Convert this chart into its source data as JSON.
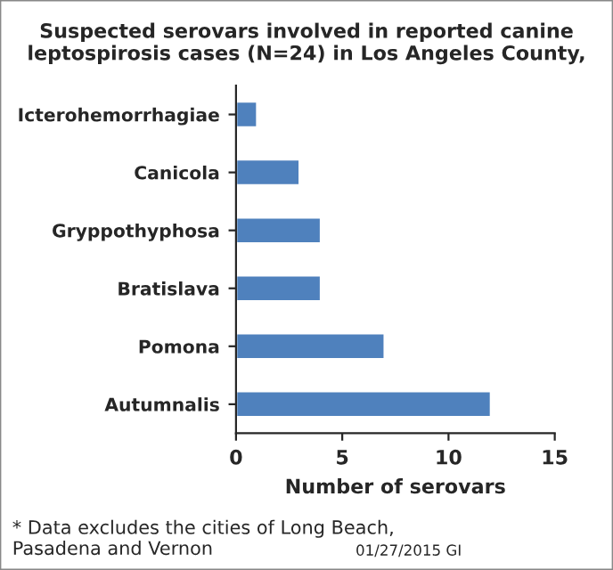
{
  "chart_data": {
    "type": "bar",
    "orientation": "horizontal",
    "title": "Suspected serovars involved in reported canine\nleptospirosis cases (N=24) in Los Angeles County,",
    "xlabel": "Number of serovars",
    "categories": [
      "Icterohemorrhagiae",
      "Canicola",
      "Gryppothyphosa",
      "Bratislava",
      "Pomona",
      "Autumnalis"
    ],
    "values": [
      1,
      3,
      4,
      4,
      7,
      12
    ],
    "color": "#4f81bd",
    "xlim": [
      0,
      15
    ],
    "xticks": [
      0,
      5,
      10,
      15
    ],
    "grid": false,
    "legend": false,
    "annotations": [
      "* Data excludes the cities of Long Beach,\nPasadena and Vernon",
      "01/27/2015 GI"
    ]
  }
}
